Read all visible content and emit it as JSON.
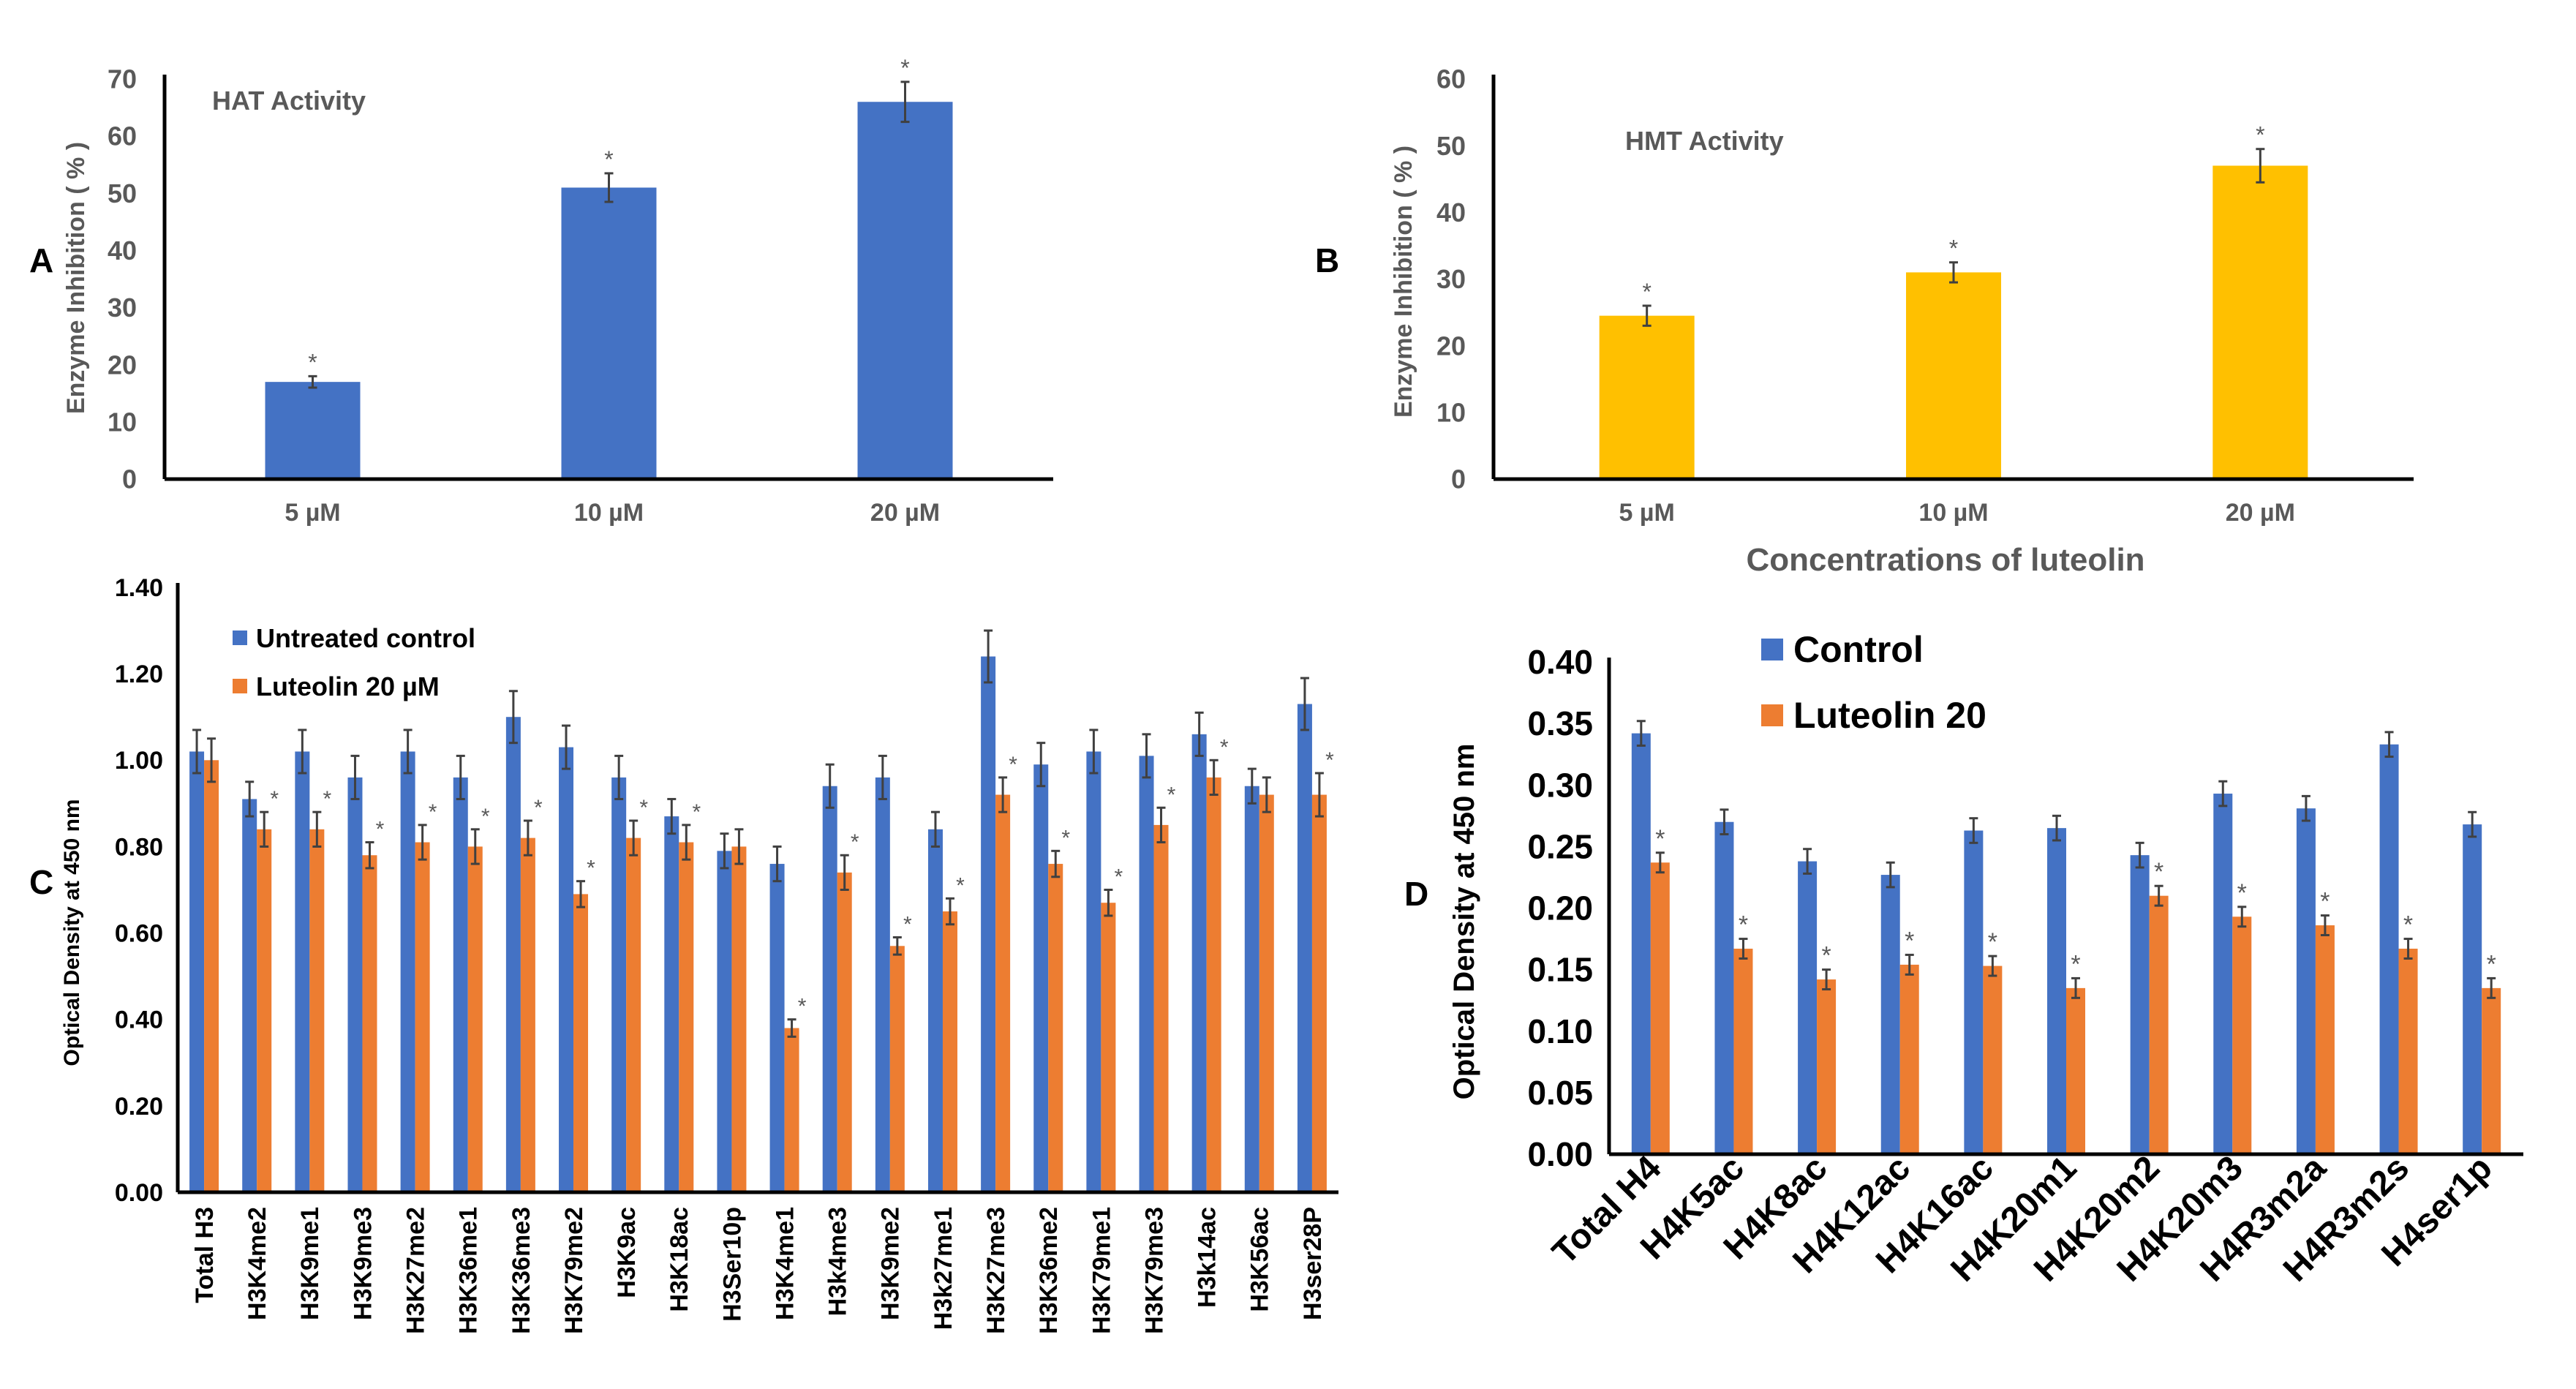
{
  "colors": {
    "blue": "#4472C4",
    "yellow": "#FFC000",
    "orange": "#ED7D31",
    "axis_text": "#595959"
  },
  "chart_data": [
    {
      "panel": "A",
      "type": "bar",
      "title": "HAT Activity",
      "ylabel": "Enzyme Inhibition ( % )",
      "xlabel": "",
      "ylim": [
        0,
        70
      ],
      "yticks": [
        "0",
        "10",
        "20",
        "30",
        "40",
        "50",
        "60",
        "70"
      ],
      "categories": [
        "5 µM",
        "10 µM",
        "20 µM"
      ],
      "values": [
        17,
        51,
        66
      ],
      "errors": [
        1,
        2.5,
        3.5
      ],
      "significance": [
        "*",
        "*",
        "*"
      ],
      "color": "#4472C4"
    },
    {
      "panel": "B",
      "type": "bar",
      "title": "HMT Activity",
      "ylabel": "Enzyme  Inhibition ( % )",
      "xlabel": "Concentrations of luteolin",
      "ylim": [
        0,
        60
      ],
      "yticks": [
        "0",
        "10",
        "20",
        "30",
        "40",
        "50",
        "60"
      ],
      "categories": [
        "5 µM",
        "10 µM",
        "20 µM"
      ],
      "values": [
        24.5,
        31,
        47
      ],
      "errors": [
        1.5,
        1.5,
        2.5
      ],
      "significance": [
        "*",
        "*",
        "*"
      ],
      "color": "#FFC000"
    },
    {
      "panel": "C",
      "type": "bar",
      "ylabel": "Optical Density at 450 nm",
      "xlabel": "",
      "ylim": [
        0,
        1.4
      ],
      "yticks": [
        "0.00",
        "0.20",
        "0.40",
        "0.60",
        "0.80",
        "1.00",
        "1.20",
        "1.40"
      ],
      "categories": [
        "Total H3",
        "H3K4me2",
        "H3K9me1",
        "H3K9me3",
        "H3K27me2",
        "H3K36me1",
        "H3K36me3",
        "H3K79me2",
        "H3K9ac",
        "H3K18ac",
        "H3Ser10p",
        "H3K4me1",
        "H3k4me3",
        "H3K9me2",
        "H3k27me1",
        "H3K27me3",
        "H3K36me2",
        "H3K79me1",
        "H3K79me3",
        "H3k14ac",
        "H3K56ac",
        "H3ser28P"
      ],
      "series": [
        {
          "name": "Untreated control",
          "color": "#4472C4",
          "values": [
            1.02,
            0.91,
            1.02,
            0.96,
            1.02,
            0.96,
            1.1,
            1.03,
            0.96,
            0.87,
            0.79,
            0.76,
            0.94,
            0.96,
            0.84,
            1.24,
            0.99,
            1.02,
            1.01,
            1.06,
            0.94,
            1.13
          ],
          "errors": [
            0.05,
            0.04,
            0.05,
            0.05,
            0.05,
            0.05,
            0.06,
            0.05,
            0.05,
            0.04,
            0.04,
            0.04,
            0.05,
            0.05,
            0.04,
            0.06,
            0.05,
            0.05,
            0.05,
            0.05,
            0.04,
            0.06
          ]
        },
        {
          "name": "Luteolin 20 µM",
          "color": "#ED7D31",
          "values": [
            1.0,
            0.84,
            0.84,
            0.78,
            0.81,
            0.8,
            0.82,
            0.69,
            0.82,
            0.81,
            0.8,
            0.38,
            0.74,
            0.57,
            0.65,
            0.92,
            0.76,
            0.67,
            0.85,
            0.96,
            0.92,
            0.92
          ],
          "errors": [
            0.05,
            0.04,
            0.04,
            0.03,
            0.04,
            0.04,
            0.04,
            0.03,
            0.04,
            0.04,
            0.04,
            0.02,
            0.04,
            0.02,
            0.03,
            0.04,
            0.03,
            0.03,
            0.04,
            0.04,
            0.04,
            0.05
          ],
          "significance": [
            "",
            "*",
            "*",
            "*",
            "*",
            "*",
            "*",
            "*",
            "*",
            "*",
            "",
            "*",
            "*",
            "*",
            "*",
            "*",
            "*",
            "*",
            "*",
            "*",
            "",
            "*"
          ]
        }
      ]
    },
    {
      "panel": "D",
      "type": "bar",
      "ylabel": "Optical Density at 450 nm",
      "xlabel": "",
      "ylim": [
        0,
        0.4
      ],
      "yticks": [
        "0.00",
        "0.05",
        "0.10",
        "0.15",
        "0.20",
        "0.25",
        "0.30",
        "0.35",
        "0.40"
      ],
      "categories": [
        "Total H4",
        "H4K5ac",
        "H4K8ac",
        "H4K12ac",
        "H4K16ac",
        "H4K20m1",
        "H4K20m2",
        "H4K20m3",
        "H4R3m2a",
        "H4R3m2s",
        "H4ser1p"
      ],
      "series": [
        {
          "name": "Control",
          "color": "#4472C4",
          "values": [
            0.342,
            0.27,
            0.238,
            0.227,
            0.263,
            0.265,
            0.243,
            0.293,
            0.281,
            0.333,
            0.268
          ],
          "errors": [
            0.01,
            0.01,
            0.01,
            0.01,
            0.01,
            0.01,
            0.01,
            0.01,
            0.01,
            0.01,
            0.01
          ]
        },
        {
          "name": "Luteolin 20",
          "color": "#ED7D31",
          "values": [
            0.237,
            0.167,
            0.142,
            0.154,
            0.153,
            0.135,
            0.21,
            0.193,
            0.186,
            0.167,
            0.135
          ],
          "errors": [
            0.008,
            0.008,
            0.008,
            0.008,
            0.008,
            0.008,
            0.008,
            0.008,
            0.008,
            0.008,
            0.008
          ],
          "significance": [
            "*",
            "*",
            "*",
            "*",
            "*",
            "*",
            "*",
            "*",
            "*",
            "*",
            "*"
          ]
        }
      ]
    }
  ]
}
